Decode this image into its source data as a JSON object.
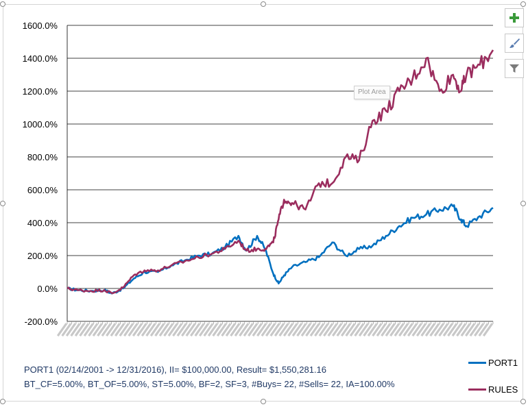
{
  "toolbar": {
    "add_icon": "plus-icon",
    "style_icon": "brush-icon",
    "filter_icon": "filter-icon"
  },
  "tooltip": "Plot Area",
  "summary": {
    "line1": "PORT1 (02/14/2001 -> 12/31/2016), II= $100,000.00, Result= $1,550,281.16",
    "line2": "BT_CF=5.00%, BT_OF=5.00%, ST=5.00%, BF=2, SF=3, #Buys= 22, #Sells= 22, IA=100.00%"
  },
  "legend": [
    {
      "label": "PORT1",
      "color": "#0070c0"
    },
    {
      "label": "RULES",
      "color": "#9b2d5e"
    }
  ],
  "chart_data": {
    "type": "line",
    "ylim": [
      -200,
      1600
    ],
    "yticks": [
      "-200.0%",
      "0.0%",
      "200.0%",
      "400.0%",
      "600.0%",
      "800.0%",
      "1000.0%",
      "1200.0%",
      "1400.0%",
      "1600.0%"
    ],
    "grid": true,
    "legend_position": "bottom-right",
    "x": [
      2001.12,
      2001.5,
      2002,
      2002.5,
      2002.8,
      2003.2,
      2003.6,
      2004,
      2004.5,
      2005,
      2005.5,
      2006,
      2006.5,
      2007,
      2007.5,
      2007.8,
      2008.2,
      2008.5,
      2008.8,
      2009.0,
      2009.2,
      2009.5,
      2010,
      2010.5,
      2011,
      2011.5,
      2012,
      2012.5,
      2013,
      2013.5,
      2014,
      2014.5,
      2015,
      2015.5,
      2015.8,
      2016,
      2016.5,
      2016.99
    ],
    "series": [
      {
        "name": "PORT1",
        "color": "#0070c0",
        "values": [
          0,
          -10,
          -15,
          -10,
          -30,
          0,
          60,
          100,
          100,
          140,
          170,
          200,
          210,
          250,
          320,
          230,
          320,
          240,
          90,
          30,
          80,
          130,
          160,
          190,
          280,
          200,
          240,
          260,
          320,
          380,
          430,
          450,
          480,
          500,
          420,
          380,
          440,
          490
        ]
      },
      {
        "name": "RULES",
        "color": "#9b2d5e",
        "values": [
          0,
          -10,
          -15,
          -10,
          -30,
          5,
          80,
          110,
          110,
          140,
          165,
          190,
          210,
          240,
          290,
          230,
          240,
          240,
          280,
          420,
          540,
          520,
          480,
          640,
          640,
          800,
          780,
          1020,
          1080,
          1200,
          1280,
          1400,
          1200,
          1300,
          1200,
          1300,
          1360,
          1450
        ]
      }
    ]
  }
}
